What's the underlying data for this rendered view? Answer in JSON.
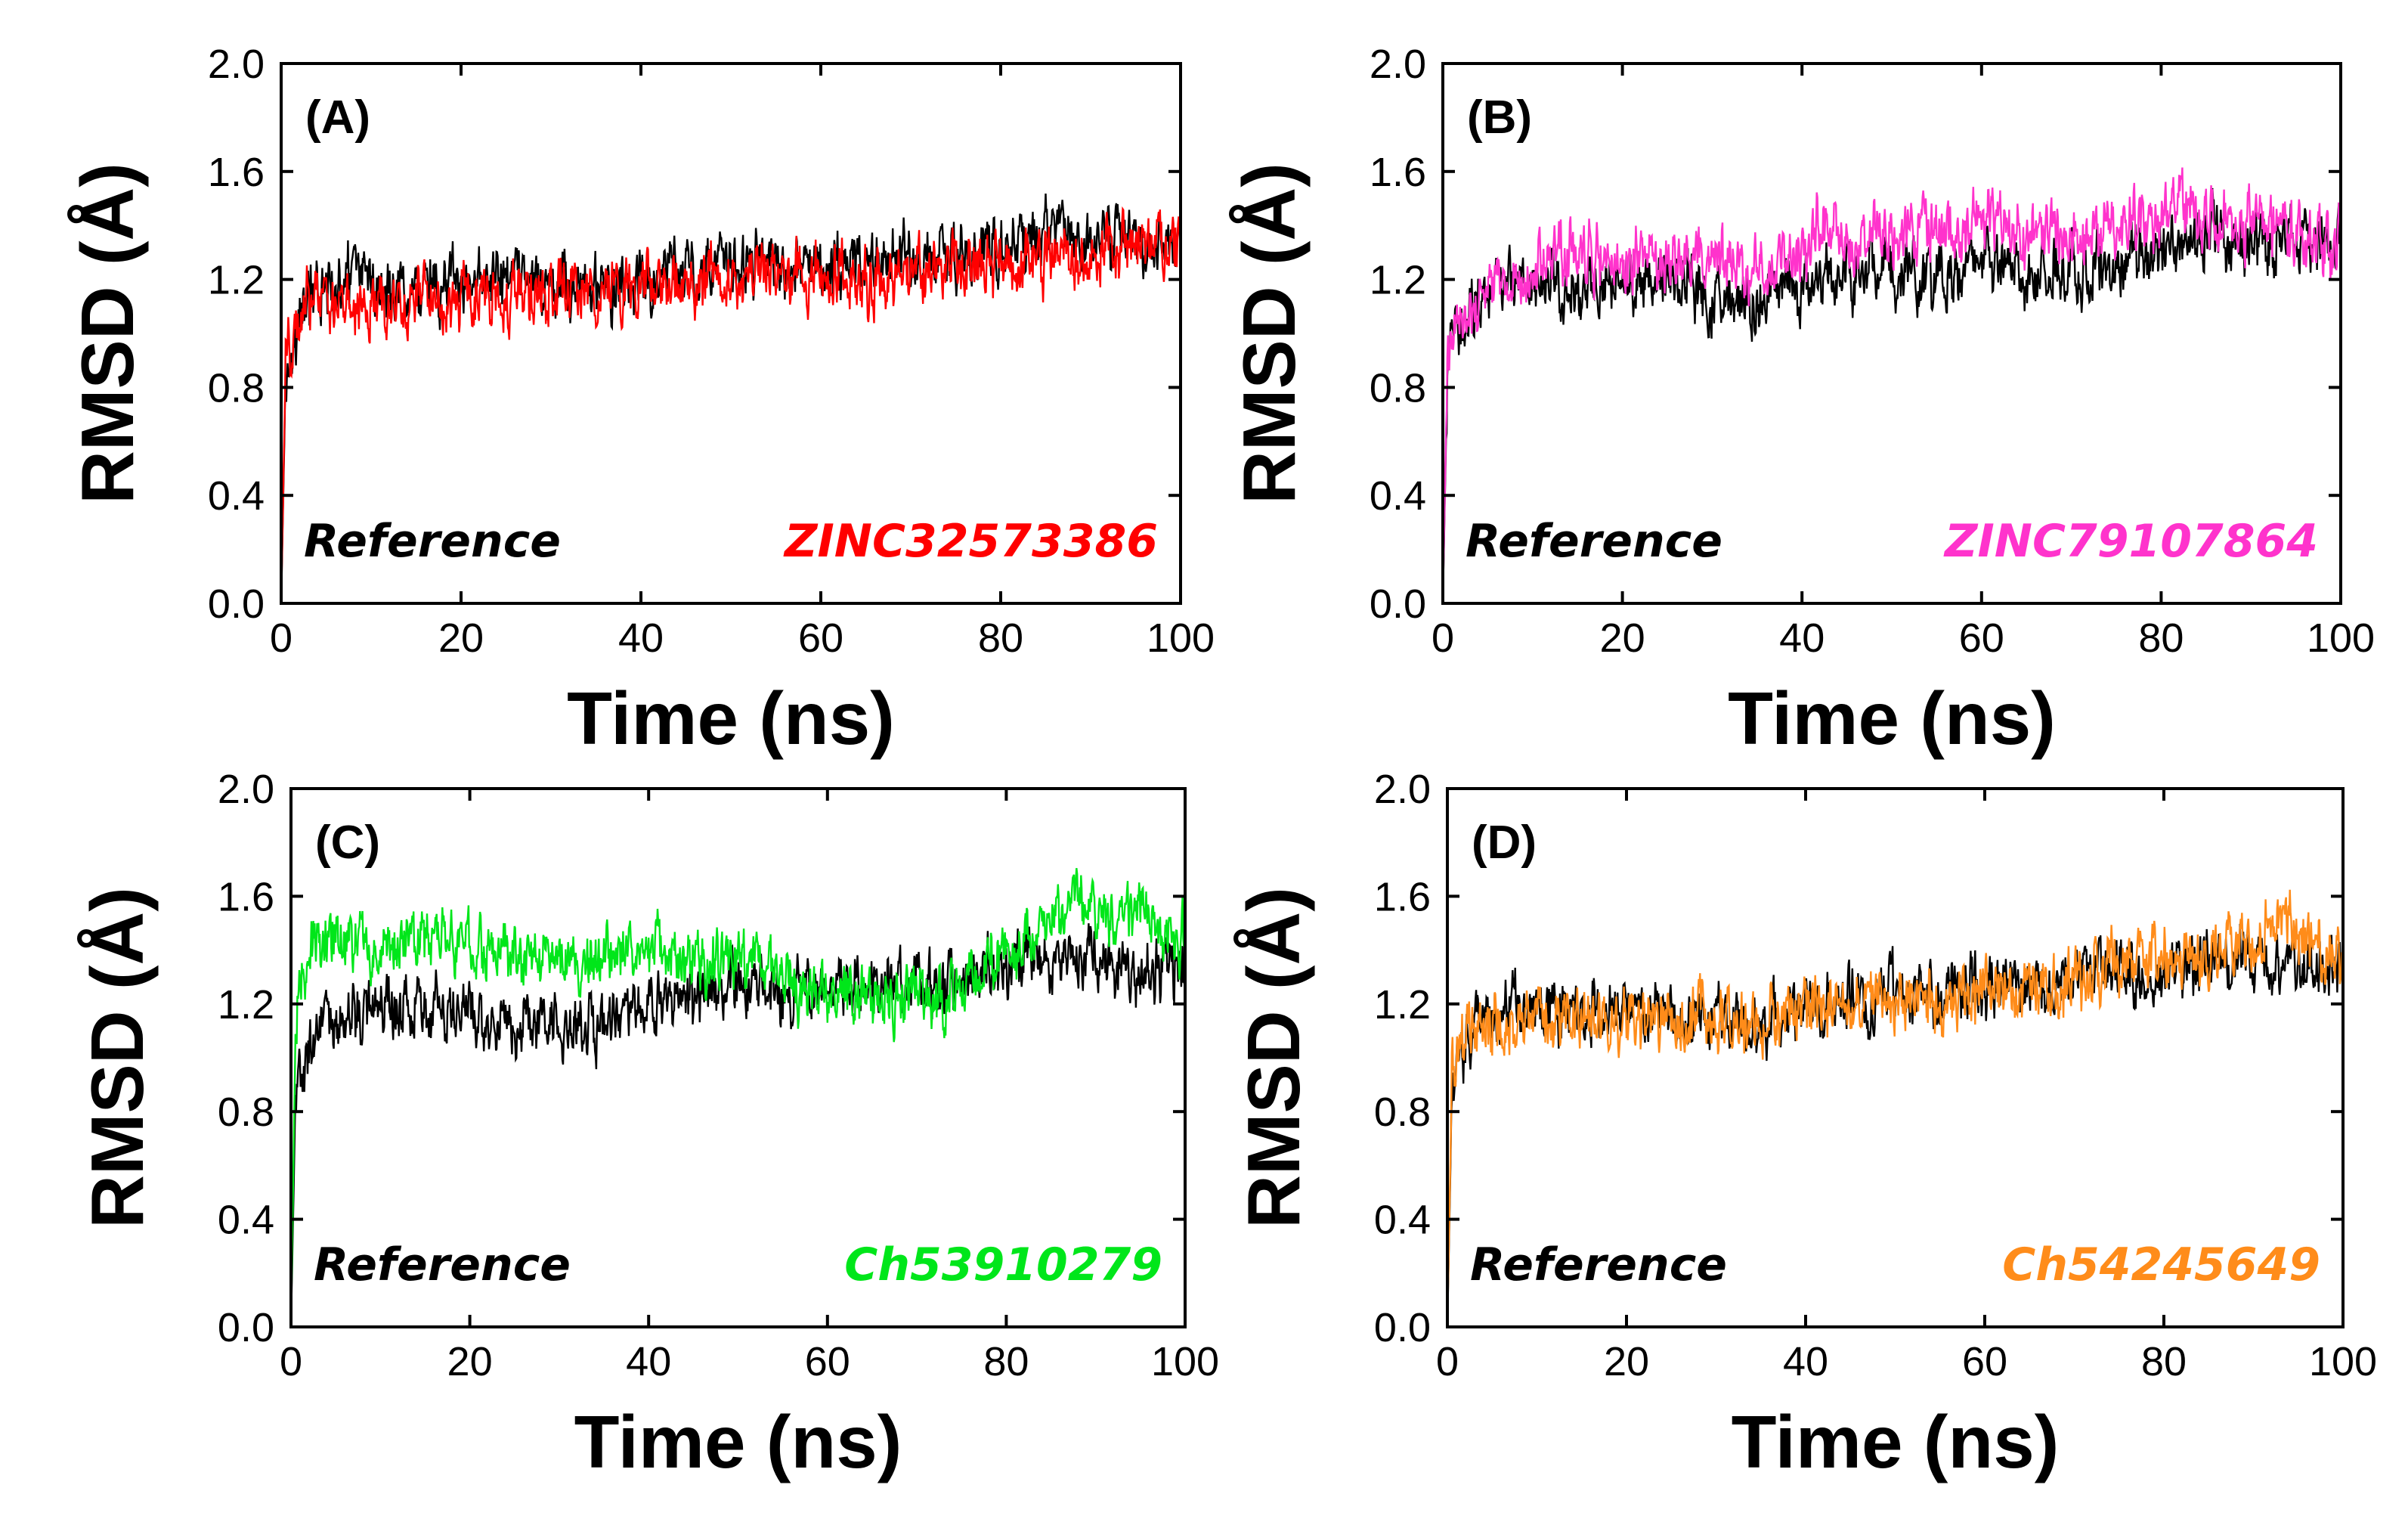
{
  "chart_data": [
    {
      "type": "line",
      "panel_label": "(A)",
      "xlabel": "Time (ns)",
      "ylabel": "RMSD (Å)",
      "xlim": [
        0,
        100
      ],
      "ylim": [
        0.0,
        2.0
      ],
      "x_ticks": [
        "0",
        "20",
        "40",
        "60",
        "80",
        "100"
      ],
      "y_ticks": [
        "0.0",
        "0.4",
        "0.8",
        "1.2",
        "1.6",
        "2.0"
      ],
      "grid": false,
      "legend_reference": "Reference",
      "legend_compound": "ZINC32573386",
      "series": [
        {
          "name": "Reference",
          "color": "#000000",
          "x": [
            0,
            0.5,
            1,
            2,
            3,
            5,
            8,
            10,
            15,
            20,
            25,
            30,
            35,
            40,
            45,
            50,
            55,
            60,
            65,
            70,
            75,
            80,
            85,
            90,
            95,
            100
          ],
          "y": [
            0.0,
            0.85,
            0.95,
            1.05,
            1.12,
            1.18,
            1.22,
            1.2,
            1.18,
            1.18,
            1.2,
            1.17,
            1.15,
            1.18,
            1.25,
            1.26,
            1.24,
            1.26,
            1.27,
            1.28,
            1.3,
            1.33,
            1.38,
            1.35,
            1.33,
            1.35
          ]
        },
        {
          "name": "ZINC32573386",
          "color": "#ff0000",
          "x": [
            0,
            0.5,
            1,
            2,
            3,
            5,
            8,
            10,
            15,
            20,
            25,
            30,
            35,
            40,
            45,
            50,
            55,
            60,
            65,
            70,
            75,
            80,
            85,
            90,
            95,
            100
          ],
          "y": [
            0.0,
            0.9,
            0.97,
            1.0,
            1.15,
            1.12,
            1.1,
            1.1,
            1.12,
            1.12,
            1.14,
            1.16,
            1.15,
            1.18,
            1.2,
            1.2,
            1.22,
            1.22,
            1.2,
            1.22,
            1.24,
            1.25,
            1.27,
            1.3,
            1.33,
            1.36
          ]
        }
      ]
    },
    {
      "type": "line",
      "panel_label": "(B)",
      "xlabel": "Time (ns)",
      "ylabel": "RMSD (Å)",
      "xlim": [
        0,
        100
      ],
      "ylim": [
        0.0,
        2.0
      ],
      "x_ticks": [
        "0",
        "20",
        "40",
        "60",
        "80",
        "100"
      ],
      "y_ticks": [
        "0.0",
        "0.4",
        "0.8",
        "1.2",
        "1.6",
        "2.0"
      ],
      "grid": false,
      "legend_reference": "Reference",
      "legend_compound": "ZINC79107864",
      "series": [
        {
          "name": "Reference",
          "color": "#000000",
          "x": [
            0,
            0.5,
            1,
            2,
            3,
            5,
            8,
            10,
            15,
            20,
            25,
            30,
            35,
            40,
            45,
            50,
            55,
            60,
            65,
            70,
            75,
            80,
            85,
            90,
            95,
            100
          ],
          "y": [
            0.0,
            0.85,
            0.95,
            1.05,
            1.12,
            1.18,
            1.22,
            1.2,
            1.18,
            1.18,
            1.2,
            1.15,
            1.12,
            1.18,
            1.22,
            1.24,
            1.22,
            1.24,
            1.22,
            1.25,
            1.26,
            1.3,
            1.38,
            1.35,
            1.33,
            1.35
          ]
        },
        {
          "name": "ZINC79107864",
          "color": "#ff33cc",
          "x": [
            0,
            0.5,
            1,
            2,
            3,
            5,
            8,
            10,
            15,
            20,
            25,
            30,
            35,
            40,
            42,
            45,
            50,
            55,
            60,
            65,
            70,
            75,
            80,
            85,
            90,
            95,
            100
          ],
          "y": [
            0.0,
            0.9,
            1.0,
            1.05,
            1.1,
            1.15,
            1.2,
            1.25,
            1.3,
            1.28,
            1.26,
            1.27,
            1.26,
            1.28,
            1.42,
            1.38,
            1.37,
            1.4,
            1.42,
            1.38,
            1.36,
            1.4,
            1.45,
            1.44,
            1.4,
            1.36,
            1.32
          ]
        }
      ]
    },
    {
      "type": "line",
      "panel_label": "(C)",
      "xlabel": "Time (ns)",
      "ylabel": "RMSD (Å)",
      "xlim": [
        0,
        100
      ],
      "ylim": [
        0.0,
        2.0
      ],
      "x_ticks": [
        "0",
        "20",
        "40",
        "60",
        "80",
        "100"
      ],
      "y_ticks": [
        "0.0",
        "0.4",
        "0.8",
        "1.2",
        "1.6",
        "2.0"
      ],
      "grid": false,
      "legend_reference": "Reference",
      "legend_compound": "Ch53910279",
      "series": [
        {
          "name": "Reference",
          "color": "#000000",
          "x": [
            0,
            0.5,
            1,
            2,
            3,
            5,
            8,
            10,
            15,
            20,
            25,
            30,
            35,
            40,
            45,
            50,
            55,
            60,
            65,
            70,
            75,
            80,
            85,
            90,
            95,
            100
          ],
          "y": [
            0.0,
            0.85,
            0.92,
            1.0,
            1.05,
            1.12,
            1.18,
            1.18,
            1.18,
            1.16,
            1.15,
            1.12,
            1.1,
            1.18,
            1.22,
            1.25,
            1.24,
            1.26,
            1.26,
            1.28,
            1.3,
            1.33,
            1.38,
            1.36,
            1.32,
            1.34
          ]
        },
        {
          "name": "Ch53910279",
          "color": "#00e61a",
          "x": [
            0,
            0.5,
            1,
            2,
            3,
            5,
            8,
            10,
            15,
            20,
            25,
            30,
            35,
            40,
            45,
            50,
            55,
            60,
            65,
            70,
            75,
            80,
            85,
            88,
            90,
            95,
            100
          ],
          "y": [
            0.0,
            1.1,
            1.3,
            1.38,
            1.42,
            1.45,
            1.42,
            1.4,
            1.45,
            1.4,
            1.38,
            1.4,
            1.35,
            1.4,
            1.38,
            1.37,
            1.3,
            1.25,
            1.22,
            1.22,
            1.26,
            1.4,
            1.48,
            1.62,
            1.52,
            1.55,
            1.42
          ]
        }
      ]
    },
    {
      "type": "line",
      "panel_label": "(D)",
      "xlabel": "Time (ns)",
      "ylabel": "RMSD (Å)",
      "xlim": [
        0,
        100
      ],
      "ylim": [
        0.0,
        2.0
      ],
      "x_ticks": [
        "0",
        "20",
        "40",
        "60",
        "80",
        "100"
      ],
      "y_ticks": [
        "0.0",
        "0.4",
        "0.8",
        "1.2",
        "1.6",
        "2.0"
      ],
      "grid": false,
      "legend_reference": "Reference",
      "legend_compound": "Ch54245649",
      "series": [
        {
          "name": "Reference",
          "color": "#000000",
          "x": [
            0,
            0.5,
            1,
            2,
            3,
            5,
            8,
            10,
            15,
            20,
            25,
            30,
            35,
            40,
            45,
            50,
            55,
            60,
            65,
            70,
            75,
            80,
            85,
            90,
            95,
            100
          ],
          "y": [
            0.0,
            0.85,
            0.95,
            1.05,
            1.12,
            1.16,
            1.2,
            1.2,
            1.18,
            1.18,
            1.17,
            1.14,
            1.12,
            1.18,
            1.22,
            1.24,
            1.23,
            1.26,
            1.25,
            1.28,
            1.3,
            1.32,
            1.38,
            1.36,
            1.32,
            1.34
          ]
        },
        {
          "name": "Ch54245649",
          "color": "#ff8c1a",
          "x": [
            0,
            0.5,
            1,
            2,
            3,
            5,
            8,
            10,
            15,
            20,
            25,
            30,
            35,
            40,
            45,
            50,
            55,
            60,
            65,
            70,
            75,
            80,
            85,
            90,
            92,
            95,
            100
          ],
          "y": [
            0.0,
            0.9,
            1.0,
            1.05,
            1.1,
            1.12,
            1.15,
            1.15,
            1.12,
            1.13,
            1.15,
            1.15,
            1.14,
            1.18,
            1.22,
            1.22,
            1.2,
            1.24,
            1.26,
            1.3,
            1.36,
            1.35,
            1.38,
            1.45,
            1.55,
            1.45,
            1.38
          ]
        }
      ]
    }
  ]
}
